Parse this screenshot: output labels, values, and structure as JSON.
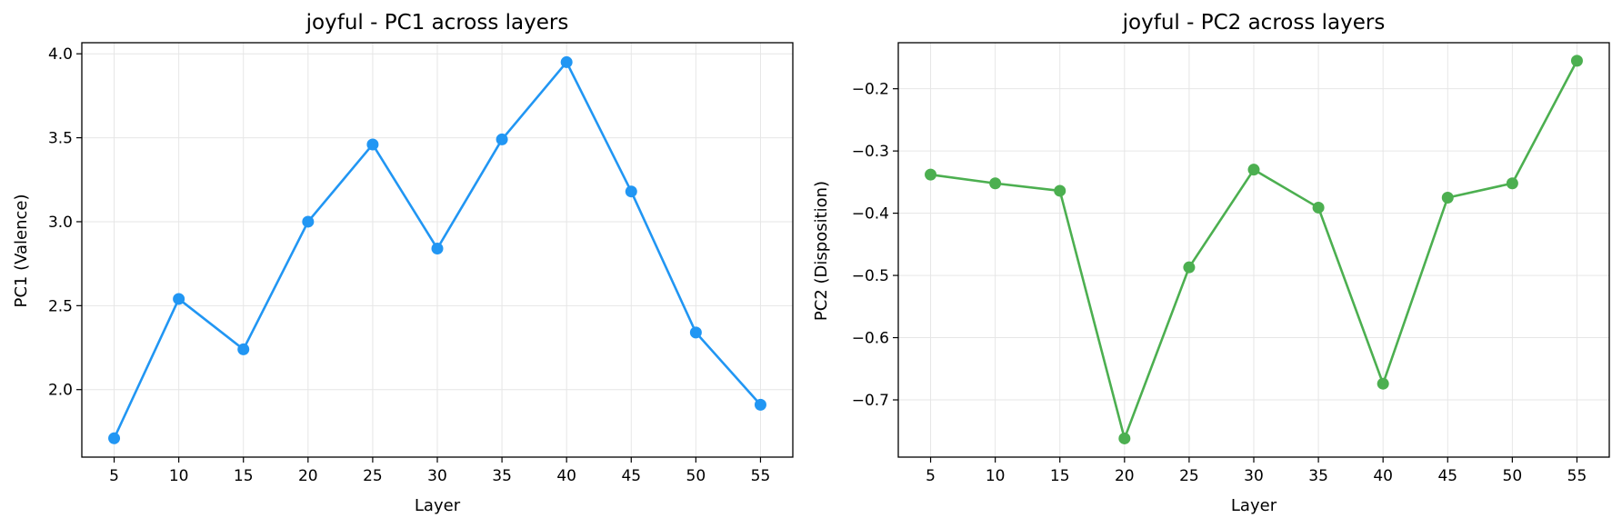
{
  "chart_data": [
    {
      "type": "line",
      "title": "joyful - PC1 across layers",
      "xlabel": "Layer",
      "ylabel": "PC1 (Valence)",
      "x": [
        5,
        10,
        15,
        20,
        25,
        30,
        35,
        40,
        45,
        50,
        55
      ],
      "series": [
        {
          "values": [
            1.71,
            2.54,
            2.24,
            3.0,
            3.46,
            2.84,
            3.49,
            3.95,
            3.18,
            2.34,
            1.91
          ],
          "color": "#2196f3"
        }
      ],
      "xticks": [
        5,
        10,
        15,
        20,
        25,
        30,
        35,
        40,
        45,
        50,
        55
      ],
      "yticks": [
        2.0,
        2.5,
        3.0,
        3.5,
        4.0
      ],
      "ytick_labels": [
        "2.0",
        "2.5",
        "3.0",
        "3.5",
        "4.0"
      ],
      "xlim": [
        2.5,
        57.5
      ],
      "ylim": [
        1.598,
        4.066
      ],
      "grid": true,
      "marker": "circle"
    },
    {
      "type": "line",
      "title": "joyful - PC2 across layers",
      "xlabel": "Layer",
      "ylabel": "PC2 (Disposition)",
      "x": [
        5,
        10,
        15,
        20,
        25,
        30,
        35,
        40,
        45,
        50,
        55
      ],
      "series": [
        {
          "values": [
            -0.338,
            -0.352,
            -0.364,
            -0.762,
            -0.487,
            -0.33,
            -0.391,
            -0.674,
            -0.375,
            -0.352,
            -0.155
          ],
          "color": "#4caf50"
        }
      ],
      "xticks": [
        5,
        10,
        15,
        20,
        25,
        30,
        35,
        40,
        45,
        50,
        55
      ],
      "yticks": [
        -0.7,
        -0.6,
        -0.5,
        -0.4,
        -0.3,
        -0.2
      ],
      "ytick_labels": [
        "−0.7",
        "−0.6",
        "−0.5",
        "−0.4",
        "−0.3",
        "−0.2"
      ],
      "xlim": [
        2.5,
        57.5
      ],
      "ylim": [
        -0.792,
        -0.126
      ],
      "grid": true,
      "marker": "circle"
    }
  ]
}
